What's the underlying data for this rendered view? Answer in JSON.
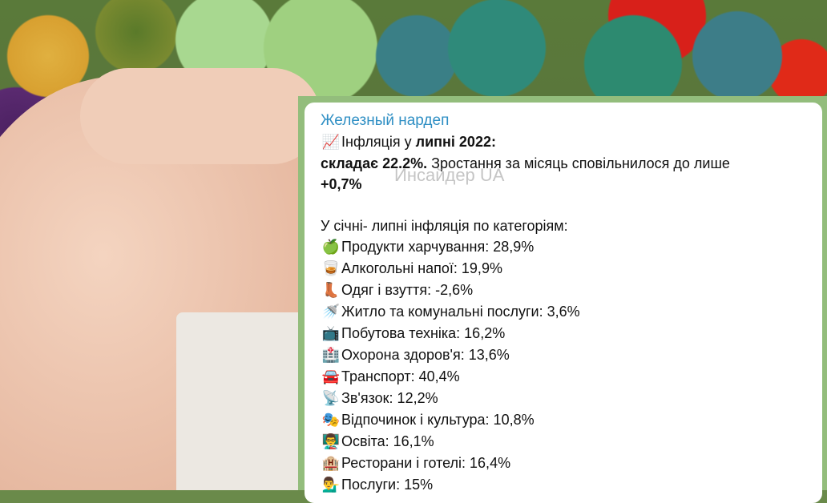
{
  "channel_name": "Железный нардеп",
  "watermark": "Инсайдер UA",
  "headline": {
    "icon": "chart-increasing-icon",
    "icon_glyph": "📈",
    "prefix": "Інфляція у ",
    "bold": "липні 2022:"
  },
  "line2": {
    "bold": "складає 22.2%.",
    "text": " Зростання за місяць сповільнилося до лише"
  },
  "line3": {
    "bold": "+0,7%"
  },
  "categories_title": "У січні- липні інфляція по категоріям:",
  "categories": [
    {
      "icon": "green-apple-icon",
      "glyph": "🍏",
      "label": "Продукти харчування: 28,9%"
    },
    {
      "icon": "whisky-glass-icon",
      "glyph": "🥃",
      "label": "Алкогольні напої: 19,9%"
    },
    {
      "icon": "boot-icon",
      "glyph": "👢",
      "label": "Одяг і взуття: -2,6%"
    },
    {
      "icon": "shower-icon",
      "glyph": "🚿",
      "label": "Житло та комунальні послуги: 3,6%"
    },
    {
      "icon": "television-icon",
      "glyph": "📺",
      "label": "Побутова техніка: 16,2%"
    },
    {
      "icon": "hospital-icon",
      "glyph": "🏥",
      "label": "Охорона здоров'я: 13,6%"
    },
    {
      "icon": "car-icon",
      "glyph": "🚘",
      "label": "Транспорт: 40,4%"
    },
    {
      "icon": "satellite-dish-icon",
      "glyph": "📡",
      "label": "Зв'язок: 12,2%"
    },
    {
      "icon": "theater-masks-icon",
      "glyph": "🎭",
      "label": "Відпочинок і культура: 10,8%"
    },
    {
      "icon": "teacher-icon",
      "glyph": "👨‍🏫",
      "label": "Освіта: 16,1%"
    },
    {
      "icon": "hotel-icon",
      "glyph": "🏨",
      "label": "Ресторани і готелі: 16,4%"
    },
    {
      "icon": "person-icon",
      "glyph": "💁‍♂️",
      "label": "Послуги: 15%"
    }
  ]
}
